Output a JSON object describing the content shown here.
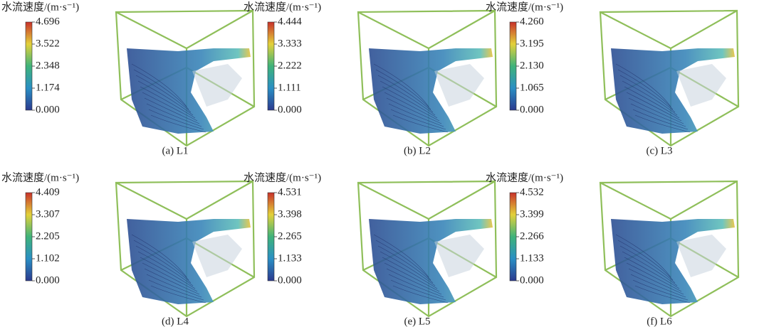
{
  "panels": [
    {
      "colorbar_title": "水流速度/(m·s⁻¹)",
      "ticks": [
        "4.696",
        "3.522",
        "2.348",
        "1.174",
        "0.000"
      ],
      "caption": "(a) L1"
    },
    {
      "colorbar_title": "水流速度/(m·s⁻¹)",
      "ticks": [
        "4.444",
        "3.333",
        "2.222",
        "1.111",
        "0.000"
      ],
      "caption": "(b) L2"
    },
    {
      "colorbar_title": "水流速度/(m·s⁻¹)",
      "ticks": [
        "4.260",
        "3.195",
        "2.130",
        "1.065",
        "0.000"
      ],
      "caption": "(c) L3"
    },
    {
      "colorbar_title": "水流速度/(m·s⁻¹)",
      "ticks": [
        "4.409",
        "3.307",
        "2.205",
        "1.102",
        "0.000"
      ],
      "caption": "(d) L4"
    },
    {
      "colorbar_title": "水流速度/(m·s⁻¹)",
      "ticks": [
        "4.531",
        "3.398",
        "2.265",
        "1.133",
        "0.000"
      ],
      "caption": "(e) L5"
    },
    {
      "colorbar_title": "水流速度/(m·s⁻¹)",
      "ticks": [
        "4.532",
        "3.399",
        "2.266",
        "1.133",
        "0.000"
      ],
      "caption": "(f) L6"
    }
  ]
}
